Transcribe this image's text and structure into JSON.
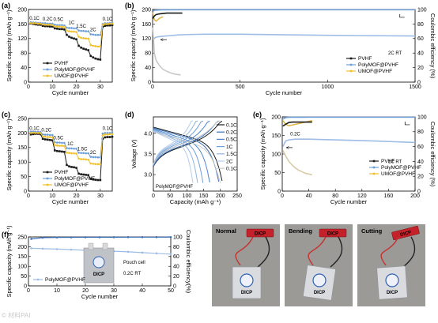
{
  "series_names": [
    "PVHF",
    "PolyMOF@PVHF",
    "UMOF@PVHF"
  ],
  "colors": {
    "PVHF": "#1a1a1a",
    "PolyMOF@PVHF": "#6f9fd8",
    "UMOF@PVHF": "#f0bf2a",
    "grey": "#c8c8c8",
    "blue_light": "#9dbce6"
  },
  "watermark": "© 材料PAI",
  "chart_data": [
    {
      "id": "a",
      "panel_label": "(a)",
      "type": "line",
      "xlabel": "Cycle number",
      "ylabel": "Specific capacity (mAh g⁻¹)",
      "xlim": [
        0,
        35
      ],
      "ylim": [
        0,
        200
      ],
      "xticks": [
        "0",
        "10",
        "20",
        "30"
      ],
      "yticks": [
        "0",
        "40",
        "80",
        "120",
        "160",
        "200"
      ],
      "rate_labels": [
        {
          "text": "0.1C",
          "x": 2.5,
          "y": 172
        },
        {
          "text": "0.2C",
          "x": 8,
          "y": 170
        },
        {
          "text": "0.5C",
          "x": 12.5,
          "y": 168
        },
        {
          "text": "1C",
          "x": 18,
          "y": 160
        },
        {
          "text": "1.5C",
          "x": 22,
          "y": 150
        },
        {
          "text": "2C",
          "x": 27,
          "y": 140
        },
        {
          "text": "0.1C",
          "x": 33,
          "y": 170
        }
      ],
      "x": [
        1,
        2,
        3,
        4,
        5,
        6,
        7,
        8,
        9,
        10,
        11,
        12,
        13,
        14,
        15,
        16,
        17,
        18,
        19,
        20,
        21,
        22,
        23,
        24,
        25,
        26,
        27,
        28,
        29,
        30,
        31,
        32,
        33,
        34,
        35
      ],
      "series": [
        {
          "name": "PVHF",
          "values": [
            162,
            160,
            159,
            158,
            158,
            155,
            154,
            154,
            153,
            153,
            148,
            147,
            146,
            146,
            145,
            130,
            125,
            122,
            120,
            118,
            100,
            95,
            92,
            90,
            88,
            72,
            68,
            65,
            63,
            62,
            152,
            155,
            156,
            156,
            157
          ]
        },
        {
          "name": "PolyMOF@PVHF",
          "values": [
            165,
            164,
            164,
            163,
            163,
            162,
            162,
            161,
            161,
            161,
            158,
            157,
            157,
            157,
            156,
            150,
            149,
            149,
            148,
            148,
            142,
            141,
            141,
            140,
            140,
            132,
            131,
            130,
            130,
            130,
            160,
            162,
            162,
            163,
            163
          ]
        },
        {
          "name": "UMOF@PVHF",
          "values": [
            163,
            162,
            162,
            161,
            161,
            159,
            158,
            158,
            158,
            157,
            154,
            153,
            153,
            152,
            152,
            142,
            140,
            139,
            139,
            138,
            125,
            122,
            121,
            120,
            120,
            102,
            100,
            99,
            98,
            98,
            158,
            160,
            160,
            161,
            161
          ]
        }
      ]
    },
    {
      "id": "b",
      "panel_label": "(b)",
      "type": "line",
      "xlabel": "Cycle number",
      "ylabel": "Specific capacity (mAh g⁻¹)",
      "y2label": "Coulombic efficiency (%)",
      "xlim": [
        0,
        1500
      ],
      "ylim": [
        0,
        200
      ],
      "y2lim": [
        0,
        100
      ],
      "xticks": [
        "0",
        "500",
        "1000",
        "1500"
      ],
      "yticks": [
        "0",
        "40",
        "80",
        "120",
        "160",
        "200"
      ],
      "y2ticks": [
        "0",
        "20",
        "40",
        "60",
        "80",
        "100"
      ],
      "annotation": "2C RT",
      "capacity": [
        {
          "name": "PolyMOF@PVHF",
          "x": [
            1,
            20,
            50,
            100,
            150,
            200,
            300,
            500,
            800,
            1000,
            1200,
            1500
          ],
          "values": [
            118,
            124,
            126,
            128,
            130,
            131,
            132,
            132,
            130,
            129,
            128,
            127
          ]
        },
        {
          "name": "UMOF@PVHF",
          "x": [
            1,
            5,
            10,
            20,
            40,
            60,
            80,
            100,
            120,
            140,
            160
          ],
          "values": [
            150,
            120,
            80,
            60,
            45,
            35,
            30,
            26,
            23,
            21,
            20
          ]
        },
        {
          "name": "PVHF",
          "x": [
            1,
            10,
            20,
            40,
            60,
            80,
            100,
            140,
            170
          ],
          "values": [
            175,
            182,
            186,
            188,
            189,
            190,
            190,
            190,
            190
          ]
        }
      ],
      "efficiency": [
        {
          "name": "PolyMOF@PVHF",
          "x": [
            1,
            10,
            50,
            200,
            500,
            1000,
            1500
          ],
          "values": [
            97,
            99,
            99.5,
            99.6,
            99.6,
            99.6,
            99.6
          ]
        },
        {
          "name": "UMOF@PVHF",
          "x": [
            1,
            5,
            10,
            20,
            30,
            40,
            60
          ],
          "values": [
            96,
            90,
            86,
            84,
            86,
            88,
            90
          ]
        }
      ]
    },
    {
      "id": "c",
      "panel_label": "(c)",
      "type": "line",
      "xlabel": "Cycle number",
      "ylabel": "Specific capacity (mAh g⁻¹)",
      "xlim": [
        0,
        35
      ],
      "ylim": [
        0,
        250
      ],
      "xticks": [
        "0",
        "10",
        "20",
        "30"
      ],
      "yticks": [
        "0",
        "50",
        "100",
        "150",
        "200",
        "250"
      ],
      "rate_labels": [
        {
          "text": "0.1C",
          "x": 2.5,
          "y": 210
        },
        {
          "text": "0.2C",
          "x": 7.5,
          "y": 205
        },
        {
          "text": "0.5C",
          "x": 12.5,
          "y": 178
        },
        {
          "text": "1C",
          "x": 17.5,
          "y": 158
        },
        {
          "text": "1.5C",
          "x": 22.5,
          "y": 140
        },
        {
          "text": "2C",
          "x": 27,
          "y": 128
        },
        {
          "text": "0.1C",
          "x": 33,
          "y": 210
        }
      ],
      "x": [
        1,
        2,
        3,
        4,
        5,
        6,
        7,
        8,
        9,
        10,
        11,
        12,
        13,
        14,
        15,
        16,
        17,
        18,
        19,
        20,
        21,
        22,
        23,
        24,
        25,
        26,
        27,
        28,
        29,
        30,
        31,
        32,
        33,
        34,
        35
      ],
      "series": [
        {
          "name": "PVHF",
          "values": [
            195,
            196,
            197,
            197,
            196,
            180,
            178,
            177,
            176,
            175,
            140,
            138,
            137,
            136,
            135,
            90,
            85,
            83,
            82,
            80,
            60,
            58,
            57,
            56,
            55,
            42,
            40,
            39,
            38,
            38,
            180,
            185,
            186,
            186,
            187
          ]
        },
        {
          "name": "PolyMOF@PVHF",
          "values": [
            205,
            205,
            204,
            204,
            204,
            195,
            194,
            194,
            193,
            193,
            168,
            167,
            167,
            166,
            166,
            148,
            147,
            147,
            146,
            146,
            132,
            131,
            131,
            130,
            130,
            118,
            117,
            117,
            116,
            116,
            198,
            200,
            200,
            200,
            201
          ]
        },
        {
          "name": "UMOF@PVHF",
          "values": [
            200,
            201,
            200,
            200,
            200,
            188,
            187,
            186,
            186,
            185,
            158,
            157,
            156,
            156,
            155,
            132,
            131,
            130,
            130,
            129,
            112,
            110,
            110,
            109,
            108,
            95,
            94,
            93,
            93,
            92,
            192,
            195,
            195,
            196,
            196
          ]
        }
      ]
    },
    {
      "id": "d",
      "panel_label": "(d)",
      "type": "line",
      "xlabel": "Capacity (mAh g⁻¹)",
      "ylabel": "Voltage (V)",
      "xlim": [
        0,
        250
      ],
      "ylim": [
        2.6,
        4.4
      ],
      "xticks": [
        "0",
        "50",
        "100",
        "150",
        "200",
        "250"
      ],
      "yticks": [
        "3.0",
        "3.5",
        "4.0"
      ],
      "legend": [
        "0.1C",
        "0.2C",
        "0.5C",
        "1C",
        "1.5C",
        "2C",
        "0.1C"
      ],
      "curve_colors": [
        "#1a1a1a",
        "#3a6fb8",
        "#4b86cc",
        "#6f9fd8",
        "#8fb5e2",
        "#b3cdee",
        "#c8c8c8"
      ],
      "annotation": "PolyMOF@PVHF",
      "capacities": [
        205,
        195,
        168,
        148,
        132,
        118,
        200
      ]
    },
    {
      "id": "e",
      "panel_label": "(e)",
      "type": "line",
      "xlabel": "Cycle number",
      "ylabel": "Specific capacity (mAh g⁻¹)",
      "y2label": "Coulombic efficiency (%)",
      "xlim": [
        0,
        200
      ],
      "ylim": [
        0,
        200
      ],
      "y2lim": [
        0,
        100
      ],
      "xticks": [
        "0",
        "40",
        "80",
        "120",
        "160",
        "200"
      ],
      "yticks": [
        "0",
        "50",
        "100",
        "150",
        "200"
      ],
      "y2ticks": [
        "0",
        "20",
        "40",
        "60",
        "80",
        "100"
      ],
      "annotation": "1C RT",
      "rate_note": "0.2C",
      "capacity": [
        {
          "name": "PolyMOF@PVHF",
          "x": [
            1,
            5,
            10,
            20,
            40,
            60,
            100,
            140,
            170,
            200
          ],
          "values": [
            120,
            135,
            138,
            140,
            140,
            139,
            137,
            135,
            133,
            131
          ]
        },
        {
          "name": "UMOF@PVHF",
          "x": [
            1,
            5,
            10,
            15,
            20,
            25,
            30,
            35,
            40,
            45
          ],
          "values": [
            110,
            95,
            80,
            70,
            62,
            56,
            52,
            48,
            46,
            44
          ]
        },
        {
          "name": "PVHF",
          "x": [
            1,
            5,
            10,
            15,
            20,
            25,
            30,
            35,
            40,
            45
          ],
          "values": [
            175,
            180,
            185,
            186,
            186,
            186,
            186,
            186,
            186,
            186
          ]
        }
      ],
      "efficiency": [
        {
          "name": "PolyMOF@PVHF",
          "x": [
            1,
            5,
            10,
            40,
            100,
            200
          ],
          "values": [
            97,
            99,
            99.5,
            99.6,
            99.6,
            99.6
          ]
        },
        {
          "name": "UMOF@PVHF",
          "x": [
            1,
            5,
            10,
            20,
            30,
            40,
            45
          ],
          "values": [
            95,
            90,
            88,
            90,
            92,
            94,
            95
          ]
        }
      ]
    },
    {
      "id": "f",
      "panel_label": "(f)",
      "type": "line",
      "xlabel": "Cycle number",
      "ylabel": "Specific capacity (mAh g⁻¹)",
      "y2label": "Coulombic efficiency(%)",
      "xlim": [
        0,
        50
      ],
      "ylim": [
        0,
        250
      ],
      "y2lim": [
        0,
        100
      ],
      "xticks": [
        "0",
        "10",
        "20",
        "30",
        "40",
        "50"
      ],
      "yticks": [
        "0",
        "50",
        "100",
        "150",
        "200",
        "250"
      ],
      "y2ticks": [
        "0",
        "20",
        "40",
        "60",
        "80",
        "100"
      ],
      "annotation_1": "Pouch cell",
      "annotation_2": "0.2C RT",
      "legend": [
        "PolyMOF@PVHF"
      ],
      "capacity": {
        "name": "PolyMOF@PVHF",
        "x": [
          1,
          5,
          10,
          15,
          20,
          25,
          30,
          35,
          40,
          45,
          50
        ],
        "values": [
          192,
          190,
          188,
          185,
          182,
          180,
          177,
          174,
          170,
          166,
          162
        ]
      },
      "efficiency": {
        "name": "PolyMOF@PVHF",
        "x": [
          1,
          5,
          10,
          15,
          20,
          25,
          30,
          35,
          40,
          45,
          50
        ],
        "values": [
          96,
          98.5,
          99,
          99.2,
          99.3,
          99.4,
          99.4,
          99.5,
          99.5,
          99.5,
          99.5
        ]
      },
      "inset_text": "DICP"
    }
  ],
  "photos": {
    "panel_label": "(g)",
    "items": [
      {
        "label": "Normal",
        "tag": "DICP"
      },
      {
        "label": "Bending",
        "tag": "DICP"
      },
      {
        "label": "Cutting",
        "tag": "DICP"
      }
    ]
  }
}
